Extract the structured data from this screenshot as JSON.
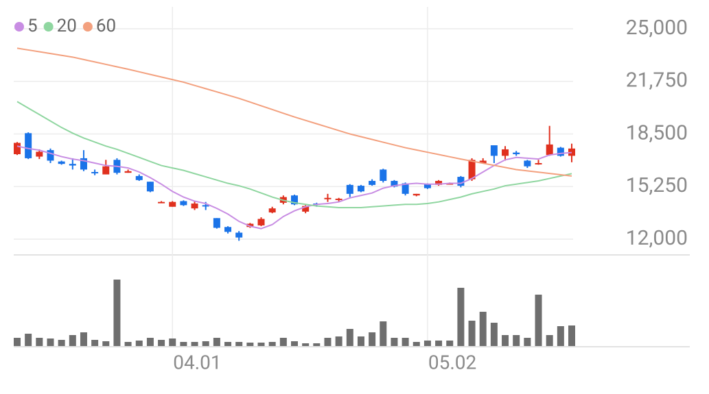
{
  "chart_data": {
    "type": "candlestick",
    "categories": [
      null,
      null,
      null,
      null,
      null,
      null,
      null,
      null,
      null,
      null,
      null,
      null,
      null,
      null,
      "04.01",
      null,
      null,
      null,
      null,
      null,
      null,
      null,
      null,
      null,
      null,
      null,
      null,
      null,
      null,
      null,
      null,
      null,
      null,
      null,
      null,
      null,
      null,
      "05.02",
      null,
      null,
      null,
      null,
      null,
      null,
      null,
      null,
      null,
      null,
      null,
      null,
      null
    ],
    "open": [
      17250,
      18550,
      17100,
      17500,
      16800,
      16650,
      17000,
      16150,
      16000,
      16900,
      16100,
      15900,
      15550,
      14250,
      14000,
      14350,
      13900,
      14100,
      13300,
      12750,
      12400,
      12750,
      12850,
      13650,
      14250,
      14700,
      13700,
      14200,
      14500,
      14450,
      15350,
      15300,
      15600,
      16300,
      15600,
      15450,
      14700,
      15400,
      15350,
      15450,
      15850,
      15700,
      16700,
      17800,
      17150,
      17350,
      16850,
      16650,
      17200,
      17650,
      17150
    ],
    "high": [
      18000,
      18600,
      17550,
      17600,
      16850,
      17000,
      17500,
      16300,
      16900,
      17000,
      16300,
      16000,
      15550,
      14350,
      14350,
      14400,
      14350,
      14300,
      13300,
      12800,
      12500,
      13000,
      13350,
      14000,
      14700,
      14750,
      14100,
      14250,
      14800,
      14550,
      15400,
      15350,
      15700,
      16350,
      15650,
      15500,
      14800,
      15450,
      15650,
      15500,
      15900,
      17000,
      17000,
      17800,
      17750,
      17450,
      16900,
      16900,
      19000,
      17700,
      17900
    ],
    "low": [
      17200,
      16950,
      16950,
      16700,
      16600,
      16300,
      16200,
      15950,
      16000,
      16000,
      16100,
      15600,
      14900,
      14250,
      14000,
      14050,
      13800,
      13800,
      12650,
      12350,
      11900,
      12700,
      12800,
      13600,
      14150,
      14100,
      13600,
      14000,
      14300,
      14300,
      14600,
      14900,
      15300,
      15500,
      15200,
      14700,
      14650,
      15100,
      15300,
      15400,
      15200,
      15600,
      16700,
      16700,
      16850,
      17150,
      16400,
      16600,
      17150,
      17100,
      16750
    ],
    "close": [
      17950,
      17000,
      17400,
      16850,
      16650,
      16550,
      16300,
      16100,
      16500,
      16100,
      16200,
      15650,
      14950,
      14300,
      14300,
      14100,
      14200,
      14050,
      12700,
      12450,
      12100,
      12950,
      13250,
      13900,
      14600,
      14150,
      14050,
      14150,
      14550,
      14500,
      14800,
      14950,
      15350,
      15600,
      15250,
      14800,
      14800,
      15150,
      15600,
      15450,
      15300,
      16900,
      16850,
      17150,
      17550,
      17250,
      16500,
      16700,
      17850,
      17150,
      17600
    ],
    "series": [
      {
        "name": "5",
        "color": "#c88de3",
        "values": [
          17750,
          17600,
          17500,
          17300,
          17100,
          16950,
          16850,
          16700,
          16550,
          16500,
          16400,
          16150,
          15800,
          15400,
          14950,
          14600,
          14350,
          14200,
          13900,
          13550,
          13100,
          12800,
          12650,
          12900,
          13400,
          13750,
          14000,
          14150,
          14200,
          14300,
          14550,
          14700,
          14850,
          15150,
          15300,
          15400,
          15450,
          15400,
          15400,
          15450,
          15450,
          15750,
          16150,
          16550,
          16900,
          17050,
          17000,
          16950,
          17200,
          17300,
          17350
        ]
      },
      {
        "name": "20",
        "color": "#8fd6a0",
        "values": [
          20500,
          20100,
          19700,
          19300,
          18900,
          18550,
          18250,
          18000,
          17750,
          17550,
          17300,
          17050,
          16800,
          16550,
          16400,
          16250,
          16050,
          15850,
          15650,
          15450,
          15300,
          15100,
          14850,
          14600,
          14400,
          14250,
          14150,
          14050,
          14000,
          13950,
          13950,
          13950,
          14000,
          14050,
          14100,
          14150,
          14150,
          14200,
          14300,
          14450,
          14600,
          14800,
          14950,
          15100,
          15300,
          15400,
          15500,
          15600,
          15750,
          15900,
          16050
        ]
      },
      {
        "name": "60",
        "color": "#f3a07e",
        "values": [
          23800,
          23690,
          23580,
          23470,
          23360,
          23250,
          23100,
          22950,
          22800,
          22650,
          22500,
          22340,
          22180,
          22020,
          21860,
          21700,
          21500,
          21300,
          21100,
          20900,
          20700,
          20470,
          20240,
          20010,
          19780,
          19550,
          19340,
          19130,
          18920,
          18710,
          18500,
          18330,
          18160,
          17990,
          17820,
          17650,
          17510,
          17370,
          17230,
          17090,
          16950,
          16820,
          16690,
          16560,
          16430,
          16300,
          16220,
          16140,
          16060,
          15980,
          15900
        ]
      }
    ],
    "volume": [
      12,
      18,
      12,
      11,
      9,
      16,
      20,
      9,
      7,
      97,
      6,
      8,
      12,
      9,
      11,
      6,
      6,
      7,
      12,
      6,
      6,
      5,
      5,
      6,
      12,
      7,
      4,
      4,
      12,
      14,
      25,
      14,
      20,
      36,
      12,
      12,
      6,
      8,
      8,
      8,
      85,
      37,
      50,
      34,
      16,
      16,
      12,
      75,
      16,
      29,
      30
    ],
    "volume_ylim": [
      0,
      100
    ],
    "up_color": "#e0301e",
    "down_color": "#1a73e8",
    "volume_color": "#6e6e6e",
    "ylim": [
      12000,
      25000
    ],
    "yticks": [
      {
        "value": 25000,
        "label": "25,000"
      },
      {
        "value": 21750,
        "label": "21,750"
      },
      {
        "value": 18500,
        "label": "18,500"
      },
      {
        "value": 15250,
        "label": "15,250"
      },
      {
        "value": 12000,
        "label": "12,000"
      }
    ],
    "grid": true
  }
}
